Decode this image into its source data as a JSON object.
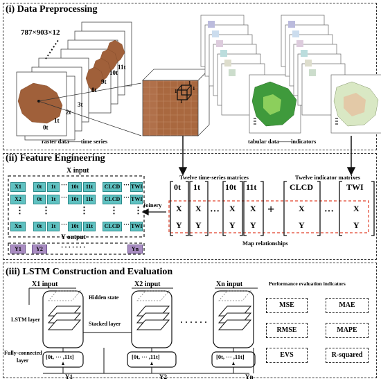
{
  "sec1": {
    "title": "(i) Data Preprocessing",
    "dims": "787×903×12",
    "time_labels": [
      "0t",
      "1t",
      "2t",
      "3t",
      "8t",
      "9t",
      "10t",
      "11t"
    ],
    "raster_caption": "raster data——time series",
    "tabular_caption": "tabular data——indicators",
    "grid_nums": [
      "1",
      "1",
      "1",
      "1"
    ]
  },
  "sec2": {
    "title": "(ii) Feature Engineering",
    "x_input_label": "X input",
    "y_output_label": "Y output",
    "rows": [
      {
        "name": "X1",
        "cells": [
          "0t",
          "1t",
          "10t",
          "11t",
          "CLCD",
          "TWI"
        ]
      },
      {
        "name": "X2",
        "cells": [
          "0t",
          "1t",
          "10t",
          "11t",
          "CLCD",
          "TWI"
        ]
      },
      {
        "name": "Xn",
        "cells": [
          "0t",
          "1t",
          "10t",
          "11t",
          "CLCD",
          "TWI"
        ]
      }
    ],
    "dots_h": "···",
    "dots_v": "⋮",
    "y_cells": [
      "Y1",
      "Y2",
      "Yn"
    ],
    "y_dots": "·······",
    "joinery": "Joinery",
    "ts_caption": "Twelve time-series matrices",
    "ind_caption": "Twelve indicator matrixes",
    "matrix_heads": [
      "0t",
      "1t",
      "10t",
      "11t",
      "CLCD",
      "TWI"
    ],
    "matrix_x": "X",
    "matrix_y": "Y",
    "plus": "+",
    "map_rel": "Map relationships"
  },
  "sec3": {
    "title": "(iii) LSTM Construction and Evaluation",
    "inputs": [
      "X1 input",
      "X2 input",
      "Xn input"
    ],
    "outputs": [
      "Y1",
      "Y2",
      "Yn"
    ],
    "hidden_state": "Hidden state",
    "stacked_layer": "Stacked layer",
    "lstm_layer": "LSTM layer",
    "fc_layer_1": "Fully-connected",
    "fc_layer_2": "layer",
    "fc_vec": "[0t, ··· ,11t]",
    "dots": "· · · · · ·",
    "perf_title": "Performance evaluation indicators",
    "metrics": [
      "MSE",
      "MAE",
      "RMSE",
      "MAPE",
      "EVS",
      "R-squared"
    ]
  },
  "colors": {
    "teal": "#5fc1c1",
    "purple": "#a98cc2",
    "brown": "#a0603a",
    "red_dashed": "#e0402a"
  }
}
